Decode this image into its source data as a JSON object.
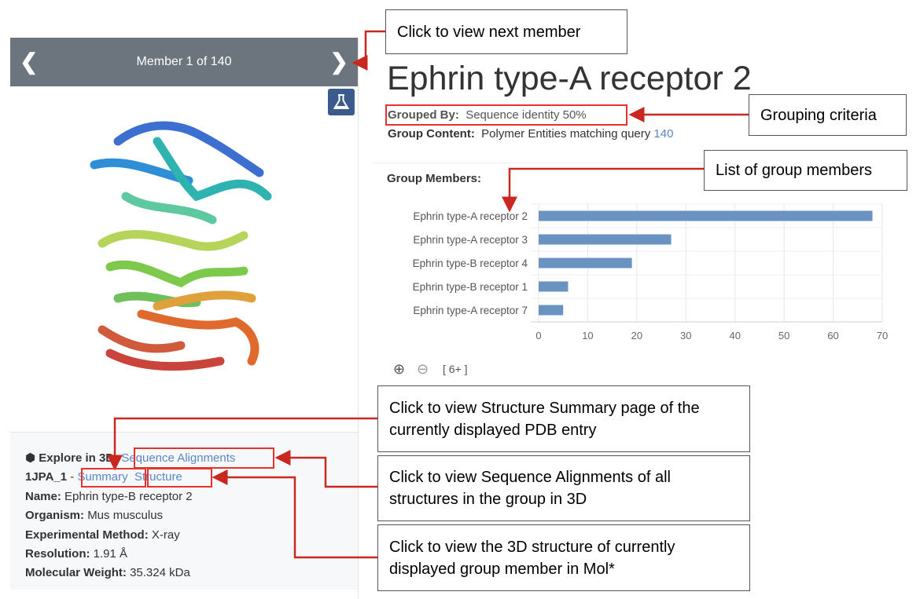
{
  "carousel": {
    "title": "Member 1 of 140",
    "prev_icon": "chevron-left-icon",
    "next_icon": "chevron-right-icon",
    "flask_icon": "flask-icon"
  },
  "info": {
    "explore_label": "Explore in 3D:",
    "explore_icon": "cube-icon",
    "sequence_alignments": "Sequence Alignments",
    "entity_id": "1JPA_1",
    "separator": "-",
    "summary_link": "Summary",
    "structure_link": "Structure",
    "name_label": "Name:",
    "name_value": "Ephrin type-B receptor 2",
    "organism_label": "Organism:",
    "organism_value": "Mus musculus",
    "method_label": "Experimental Method:",
    "method_value": "X-ray",
    "resolution_label": "Resolution:",
    "resolution_value": "1.91 Å",
    "weight_label": "Molecular Weight:",
    "weight_value": "35.324 kDa"
  },
  "group": {
    "title": "Ephrin type-A receptor 2",
    "grouped_by_label": "Grouped By:",
    "grouped_by_value": "Sequence identity 50%",
    "content_label": "Group Content:",
    "content_value": "Polymer Entities matching query",
    "content_count": "140",
    "members_label": "Group Members:",
    "zoom_in_icon": "plus-circle-icon",
    "zoom_out_icon": "minus-circle-icon",
    "more_label": "[ 6+ ]"
  },
  "chart_data": {
    "type": "bar",
    "orientation": "horizontal",
    "categories": [
      "Ephrin type-A receptor 2",
      "Ephrin type-A receptor 3",
      "Ephrin type-B receptor 4",
      "Ephrin type-B receptor 1",
      "Ephrin type-A receptor 7"
    ],
    "values": [
      68,
      27,
      19,
      6,
      5
    ],
    "xlim": [
      0,
      70
    ],
    "xticks": [
      0,
      10,
      20,
      30,
      40,
      50,
      60,
      70
    ],
    "grid": true,
    "color": "#6a93c1"
  },
  "annotations": {
    "next_member": "Click to view next member",
    "grouping": "Grouping criteria",
    "list_members": "List of group members",
    "summary": "Click to view Structure Summary page of the currently displayed PDB entry",
    "seq_align": "Click to view Sequence Alignments of all structures in the group in 3D",
    "molstar": "Click to view the 3D structure of currently displayed group member in Mol*",
    "color": "#e5322d"
  }
}
